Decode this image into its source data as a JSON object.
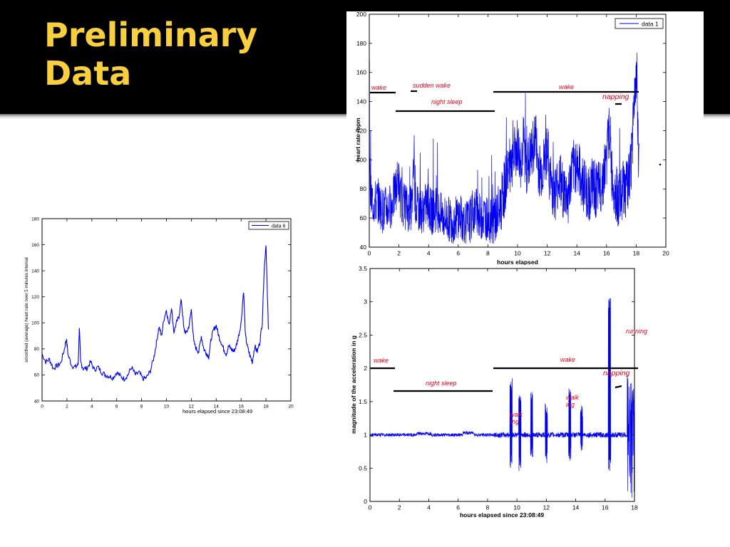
{
  "slide": {
    "title": "Preliminary\nData",
    "accent_color": "#f7cf3f",
    "background": "#000000"
  },
  "chart_data": [
    {
      "type": "line",
      "ylabel": "smoothed (average) heart rate over 5 minutes interval",
      "xlabel": "hours elapsed since 23:08:49",
      "xlim": [
        0,
        20
      ],
      "ylim": [
        40,
        180
      ],
      "xticks": [
        0,
        2,
        4,
        6,
        8,
        10,
        12,
        14,
        16,
        18,
        20
      ],
      "yticks": [
        40,
        60,
        80,
        100,
        120,
        140,
        160,
        180
      ],
      "legend": [
        "data 6"
      ],
      "legend_position": "top-right",
      "series": [
        {
          "name": "data 6",
          "color": "#0000ee",
          "x": [
            0,
            0.3,
            0.6,
            0.9,
            1.2,
            1.5,
            1.8,
            1.95,
            2.1,
            2.4,
            2.7,
            2.9,
            3.0,
            3.1,
            3.3,
            3.6,
            3.9,
            4.2,
            4.5,
            4.8,
            5.1,
            5.4,
            5.7,
            6.0,
            6.3,
            6.6,
            6.9,
            7.2,
            7.5,
            7.8,
            8.1,
            8.4,
            8.7,
            9.0,
            9.2,
            9.4,
            9.6,
            9.8,
            10.0,
            10.2,
            10.4,
            10.6,
            10.8,
            11.0,
            11.2,
            11.4,
            11.6,
            11.8,
            12.0,
            12.2,
            12.4,
            12.6,
            12.8,
            13.0,
            13.2,
            13.4,
            13.6,
            13.8,
            14.0,
            14.2,
            14.4,
            14.6,
            14.8,
            15.0,
            15.2,
            15.4,
            15.6,
            15.8,
            16.0,
            16.2,
            16.35,
            16.5,
            16.7,
            16.9,
            17.1,
            17.3,
            17.5,
            17.7,
            17.85,
            18.0,
            18.1,
            18.2
          ],
          "y": [
            76,
            70,
            72,
            65,
            67,
            69,
            80,
            88,
            75,
            67,
            66,
            68,
            97,
            70,
            65,
            65,
            70,
            64,
            66,
            62,
            60,
            59,
            58,
            62,
            59,
            57,
            60,
            66,
            60,
            62,
            57,
            58,
            63,
            74,
            85,
            97,
            90,
            103,
            110,
            98,
            112,
            93,
            100,
            105,
            118,
            95,
            92,
            97,
            110,
            85,
            80,
            78,
            90,
            80,
            77,
            74,
            88,
            95,
            98,
            90,
            85,
            80,
            76,
            82,
            80,
            78,
            82,
            90,
            100,
            125,
            90,
            82,
            75,
            70,
            82,
            78,
            85,
            100,
            140,
            161,
            125,
            95
          ]
        }
      ]
    },
    {
      "type": "line",
      "ylabel": "heart rate /bpm",
      "xlabel": "hours elapsed",
      "xlim": [
        0,
        20
      ],
      "ylim": [
        40,
        200
      ],
      "xticks": [
        0,
        2,
        4,
        6,
        8,
        10,
        12,
        14,
        16,
        18,
        20
      ],
      "yticks": [
        40,
        60,
        80,
        100,
        120,
        140,
        160,
        180,
        200
      ],
      "legend": [
        "data 1"
      ],
      "legend_position": "top-right",
      "series": [
        {
          "name": "data 1",
          "color": "#0000ee"
        }
      ],
      "annotations": [
        "wake",
        "sudden wake",
        "night sleep",
        "wake",
        "napping"
      ]
    },
    {
      "type": "line",
      "ylabel": "magnitude of the acceleration in g",
      "xlabel": "hours elapsed since 23:08:49",
      "xlim": [
        0,
        18
      ],
      "ylim": [
        0,
        3.5
      ],
      "xticks": [
        0,
        2,
        4,
        6,
        8,
        10,
        12,
        14,
        16,
        18
      ],
      "yticks": [
        0,
        0.5,
        1,
        1.5,
        2,
        2.5,
        3,
        3.5
      ],
      "series": [
        {
          "color": "#0000ee"
        }
      ],
      "annotations": [
        "wake",
        "night sleep",
        "wake",
        "napping",
        "running",
        "walk",
        "ing",
        "walk",
        "ing"
      ]
    }
  ],
  "charts": [
    {
      "ylabel": "smoothed (average) heart rate over 5 minutes interval",
      "xlabel": "hours elapsed since 23:08:49",
      "legend": "data 6",
      "xtick_labels": [
        "0",
        "2",
        "4",
        "6",
        "8",
        "10",
        "12",
        "14",
        "16",
        "18",
        "20"
      ],
      "ytick_labels": [
        "40",
        "60",
        "80",
        "100",
        "120",
        "140",
        "160",
        "180"
      ]
    },
    {
      "ylabel": "heart rate /bpm",
      "xlabel": "hours elapsed",
      "legend": "data 1",
      "xtick_labels": [
        "0",
        "2",
        "4",
        "6",
        "8",
        "10",
        "12",
        "14",
        "16",
        "18",
        "20"
      ],
      "ytick_labels": [
        "40",
        "60",
        "80",
        "100",
        "120",
        "140",
        "160",
        "180",
        "200"
      ],
      "labels": {
        "wake1": "wake",
        "sudden_wake": "sudden wake",
        "night_sleep": "night sleep",
        "wake2": "wake",
        "napping": "napping"
      }
    },
    {
      "ylabel": "magnitude of the acceleration in g",
      "xlabel": "hours elapsed since 23:08:49",
      "xtick_labels": [
        "0",
        "2",
        "4",
        "6",
        "8",
        "10",
        "12",
        "14",
        "16",
        "18"
      ],
      "ytick_labels": [
        "0",
        "0.5",
        "1",
        "1.5",
        "2",
        "2.5",
        "3",
        "3.5"
      ],
      "labels": {
        "wake1": "wake",
        "night_sleep": "night sleep",
        "wake2": "wake",
        "napping": "napping",
        "running": "running",
        "walk1a": "walk",
        "walk1b": "ing",
        "walk2a": "walk",
        "walk2b": "ing"
      }
    }
  ],
  "colors": {
    "series": "#0000ee",
    "annotation": "#e0001b",
    "marker": "#000000"
  }
}
